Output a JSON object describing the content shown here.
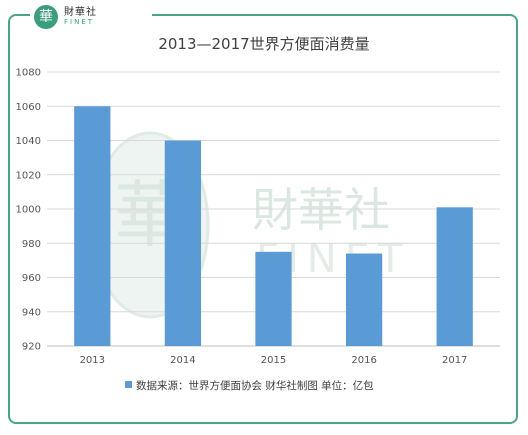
{
  "brand": {
    "seal_char": "華",
    "name_cn": "財華社",
    "name_en": "FINET"
  },
  "watermark": {
    "seal_char": "華",
    "name_cn": "財華社",
    "name_en": "FINET"
  },
  "chart_data": {
    "type": "bar",
    "title": "2013—2017世界方便面消费量",
    "categories": [
      "2013",
      "2014",
      "2015",
      "2016",
      "2017"
    ],
    "series": [
      {
        "name": "数据来源：世界方便面协会 财华社制图 单位：亿包",
        "values": [
          1060,
          1040,
          975,
          974,
          1001
        ],
        "color": "#5b9bd5"
      }
    ],
    "ylim": [
      920,
      1080
    ],
    "yticks": [
      920,
      940,
      960,
      980,
      1000,
      1020,
      1040,
      1060,
      1080
    ],
    "grid": true,
    "legend_position": "bottom"
  },
  "colors": {
    "frame": "#4aa488",
    "bar": "#5b9bd5",
    "grid": "#d9d9d9"
  }
}
